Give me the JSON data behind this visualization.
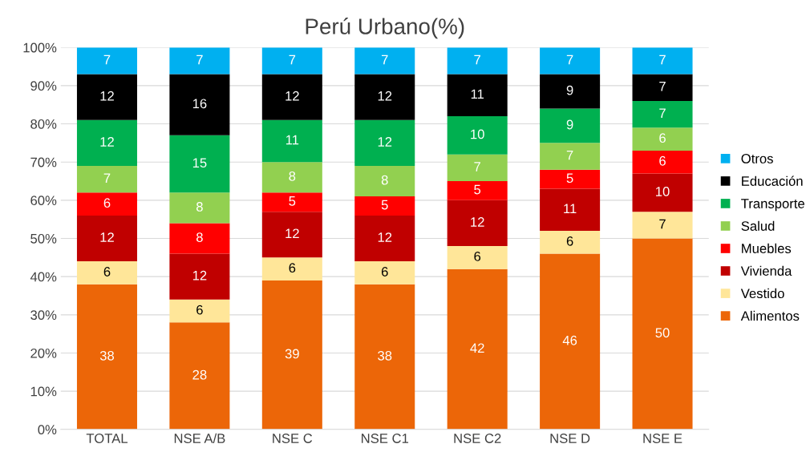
{
  "chart_data": {
    "type": "bar",
    "stacked": true,
    "title": "Perú Urbano(%)",
    "categories": [
      "TOTAL",
      "NSE A/B",
      "NSE C",
      "NSE C1",
      "NSE C2",
      "NSE D",
      "NSE E"
    ],
    "series": [
      {
        "name": "Alimentos",
        "color": "#ec6608",
        "values": [
          38,
          28,
          39,
          38,
          42,
          46,
          50
        ]
      },
      {
        "name": "Vestido",
        "color": "#ffe699",
        "values": [
          6,
          6,
          6,
          6,
          6,
          6,
          7
        ]
      },
      {
        "name": "Vivienda",
        "color": "#c00000",
        "values": [
          12,
          12,
          12,
          12,
          12,
          11,
          10
        ]
      },
      {
        "name": "Muebles",
        "color": "#ff0000",
        "values": [
          6,
          8,
          5,
          5,
          5,
          5,
          6
        ]
      },
      {
        "name": "Salud",
        "color": "#92d050",
        "values": [
          7,
          8,
          8,
          8,
          7,
          7,
          6
        ]
      },
      {
        "name": "Transporte",
        "color": "#00b050",
        "values": [
          12,
          15,
          11,
          12,
          10,
          9,
          7
        ]
      },
      {
        "name": "Educación",
        "color": "#000000",
        "values": [
          12,
          16,
          12,
          12,
          11,
          9,
          7
        ]
      },
      {
        "name": "Otros",
        "color": "#00b0f0",
        "values": [
          7,
          7,
          7,
          7,
          7,
          7,
          7
        ]
      }
    ],
    "ylim": [
      0,
      100
    ],
    "yticks": [
      {
        "value": 0,
        "label": "0%"
      },
      {
        "value": 10,
        "label": "10%"
      },
      {
        "value": 20,
        "label": "20%"
      },
      {
        "value": 30,
        "label": "30%"
      },
      {
        "value": 40,
        "label": "40%"
      },
      {
        "value": 50,
        "label": "50%"
      },
      {
        "value": 60,
        "label": "60%"
      },
      {
        "value": 70,
        "label": "70%"
      },
      {
        "value": 80,
        "label": "80%"
      },
      {
        "value": 90,
        "label": "90%"
      },
      {
        "value": 100,
        "label": "100%"
      }
    ],
    "grid": "y",
    "legend": "right",
    "data_labels": true
  }
}
